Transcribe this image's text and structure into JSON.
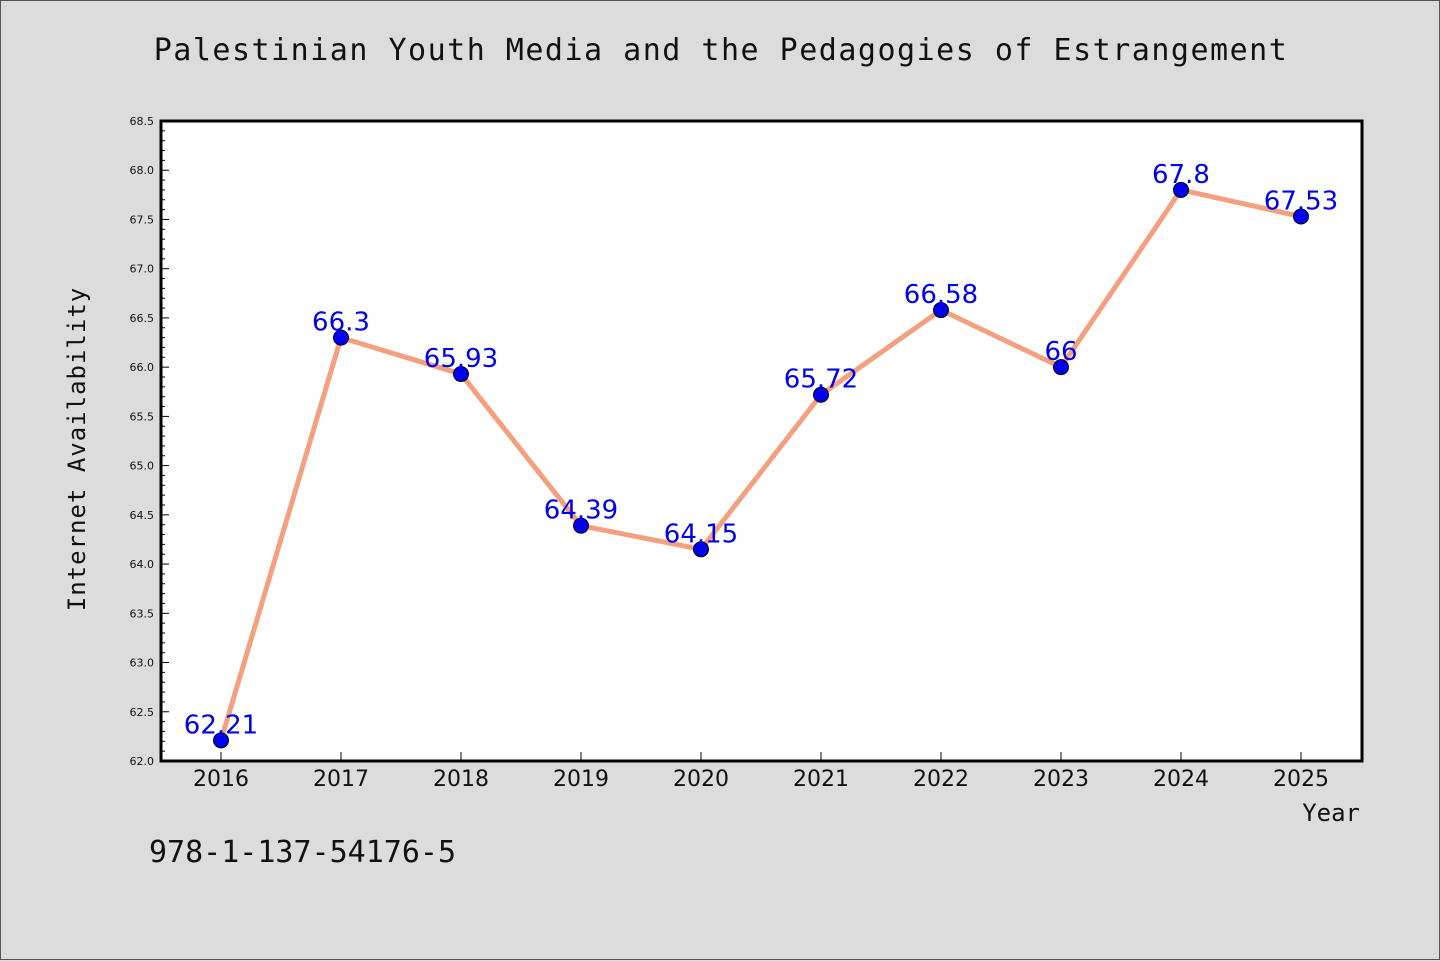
{
  "chart_data": {
    "type": "line",
    "title": "Palestinian Youth Media and the Pedagogies of Estrangement",
    "xlabel": "Year",
    "ylabel": "Internet Availability",
    "categories": [
      "2016",
      "2017",
      "2018",
      "2019",
      "2020",
      "2021",
      "2022",
      "2023",
      "2024",
      "2025"
    ],
    "values": [
      62.21,
      66.3,
      65.93,
      64.39,
      64.15,
      65.72,
      66.58,
      66,
      67.8,
      67.53
    ],
    "data_labels": [
      "62.21",
      "66.3",
      "65.93",
      "64.39",
      "64.15",
      "65.72",
      "66.58",
      "66",
      "67.8",
      "67.53"
    ],
    "y_ticks": [
      "62.0",
      "62.5",
      "63.0",
      "63.5",
      "64.0",
      "64.5",
      "65.0",
      "65.5",
      "66.0",
      "66.5",
      "67.0",
      "67.5",
      "68.0",
      "68.5"
    ],
    "ylim": [
      62.0,
      68.5
    ],
    "grid": false,
    "line_color": "#f4a07e",
    "marker_color": "#0000ee",
    "label_color": "#0000ee"
  },
  "footer_text": "978-1-137-54176-5"
}
